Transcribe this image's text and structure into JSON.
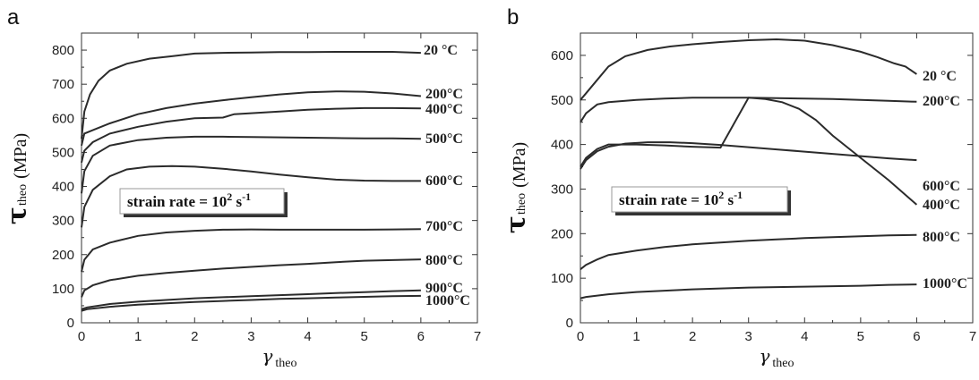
{
  "chart_data": [
    {
      "panel": "a",
      "type": "line",
      "ylabel": "τ",
      "ylabel_sub": "theo",
      "ylabel_unit": "(MPa)",
      "xlabel": "γ",
      "xlabel_sub": "theo",
      "xlim": [
        0,
        7
      ],
      "ylim": [
        0,
        850
      ],
      "xticks": [
        0,
        1,
        2,
        3,
        4,
        5,
        6,
        7
      ],
      "yticks": [
        0,
        100,
        200,
        300,
        400,
        500,
        600,
        700,
        800
      ],
      "annotation": {
        "prefix": "strain rate = 10",
        "exp": "2",
        "suffix": " s",
        "suffix_exp": "-1"
      },
      "series": [
        {
          "name": "20 °C",
          "x": [
            0,
            0.05,
            0.15,
            0.3,
            0.5,
            0.8,
            1.2,
            1.6,
            2,
            2.5,
            3,
            3.5,
            4,
            4.5,
            5,
            5.5,
            6
          ],
          "y": [
            540,
            620,
            670,
            710,
            740,
            760,
            775,
            782,
            790,
            792,
            793,
            794,
            794,
            795,
            795,
            795,
            792
          ]
        },
        {
          "name": "200°C",
          "x": [
            0,
            0.05,
            0.2,
            0.5,
            1,
            1.5,
            2,
            2.5,
            3,
            3.5,
            4,
            4.5,
            5,
            5.5,
            6
          ],
          "y": [
            520,
            555,
            565,
            585,
            612,
            630,
            643,
            653,
            662,
            670,
            676,
            679,
            678,
            673,
            665
          ]
        },
        {
          "name": "400°C",
          "x": [
            0,
            0.05,
            0.2,
            0.5,
            1,
            1.5,
            2,
            2.5,
            2.7,
            3,
            3.5,
            4,
            4.5,
            5,
            5.5,
            6
          ],
          "y": [
            470,
            505,
            530,
            555,
            575,
            590,
            600,
            602,
            612,
            615,
            620,
            625,
            628,
            630,
            630,
            629
          ]
        },
        {
          "name": "500°C",
          "x": [
            0,
            0.05,
            0.2,
            0.5,
            1,
            1.5,
            2,
            2.5,
            3,
            3.5,
            4,
            4.5,
            5,
            5.5,
            6
          ],
          "y": [
            380,
            445,
            490,
            520,
            536,
            543,
            546,
            546,
            545,
            544,
            543,
            542,
            541,
            541,
            540
          ]
        },
        {
          "name": "600°C",
          "x": [
            0,
            0.05,
            0.2,
            0.5,
            0.8,
            1.2,
            1.6,
            2,
            2.5,
            3,
            3.5,
            4,
            4.5,
            5,
            5.5,
            6
          ],
          "y": [
            280,
            340,
            390,
            430,
            450,
            458,
            460,
            458,
            452,
            444,
            435,
            427,
            420,
            417,
            416,
            416
          ]
        },
        {
          "name": "700°C",
          "x": [
            0,
            0.05,
            0.2,
            0.5,
            1,
            1.5,
            2,
            2.5,
            3,
            3.5,
            4,
            4.5,
            5,
            5.5,
            6
          ],
          "y": [
            150,
            185,
            215,
            235,
            255,
            265,
            270,
            273,
            274,
            273,
            273,
            273,
            273,
            274,
            275
          ]
        },
        {
          "name": "800°C",
          "x": [
            0,
            0.05,
            0.2,
            0.5,
            1,
            1.5,
            2,
            2.5,
            3,
            3.5,
            4,
            4.5,
            5,
            5.5,
            6
          ],
          "y": [
            75,
            95,
            110,
            125,
            138,
            146,
            153,
            159,
            164,
            169,
            173,
            178,
            182,
            184,
            186
          ]
        },
        {
          "name": "900°C",
          "x": [
            0,
            0.1,
            0.5,
            1,
            1.5,
            2,
            2.5,
            3,
            3.5,
            4,
            4.5,
            5,
            5.5,
            6
          ],
          "y": [
            40,
            45,
            55,
            62,
            67,
            72,
            75,
            78,
            81,
            84,
            87,
            90,
            93,
            95
          ]
        },
        {
          "name": "1000°C",
          "x": [
            0,
            0.1,
            0.5,
            1,
            1.5,
            2,
            2.5,
            3,
            3.5,
            4,
            4.5,
            5,
            5.5,
            6
          ],
          "y": [
            35,
            40,
            47,
            53,
            57,
            61,
            64,
            67,
            70,
            72,
            74,
            76,
            78,
            79
          ]
        }
      ]
    },
    {
      "panel": "b",
      "type": "line",
      "ylabel": "τ",
      "ylabel_sub": "theo",
      "ylabel_unit": "(MPa)",
      "xlabel": "γ",
      "xlabel_sub": "theo",
      "xlim": [
        0,
        7
      ],
      "ylim": [
        0,
        650
      ],
      "xticks": [
        0,
        1,
        2,
        3,
        4,
        5,
        6,
        7
      ],
      "yticks": [
        0,
        100,
        200,
        300,
        400,
        500,
        600
      ],
      "annotation": {
        "prefix": "strain rate = 10",
        "exp": "2",
        "suffix": " s",
        "suffix_exp": "-1"
      },
      "series": [
        {
          "name": "20 °C",
          "x": [
            0,
            0.1,
            0.3,
            0.5,
            0.8,
            1.2,
            1.6,
            2,
            2.5,
            3,
            3.5,
            4,
            4.5,
            5,
            5.3,
            5.6,
            5.8,
            6
          ],
          "y": [
            500,
            515,
            545,
            575,
            598,
            612,
            620,
            625,
            630,
            634,
            636,
            633,
            623,
            608,
            596,
            582,
            575,
            558
          ]
        },
        {
          "name": "200°C",
          "x": [
            0,
            0.1,
            0.3,
            0.5,
            1,
            1.5,
            2,
            2.5,
            3,
            3.5,
            4,
            4.5,
            5,
            5.5,
            6
          ],
          "y": [
            450,
            470,
            490,
            495,
            500,
            503,
            505,
            505,
            505,
            504,
            503,
            502,
            500,
            498,
            496
          ]
        },
        {
          "name": "400°C",
          "x": [
            0,
            0.1,
            0.3,
            0.5,
            1,
            1.5,
            2,
            2.5,
            3,
            3.3,
            3.6,
            3.9,
            4.2,
            4.5,
            5,
            5.5,
            6
          ],
          "y": [
            350,
            370,
            390,
            400,
            400,
            398,
            395,
            393,
            505,
            502,
            495,
            480,
            455,
            420,
            370,
            320,
            265
          ]
        },
        {
          "name": "600°C",
          "x": [
            0,
            0.1,
            0.3,
            0.5,
            0.8,
            1.2,
            1.6,
            2,
            2.5,
            3,
            3.5,
            4,
            4.5,
            5,
            5.5,
            6
          ],
          "y": [
            345,
            365,
            385,
            395,
            402,
            405,
            405,
            403,
            399,
            394,
            389,
            384,
            379,
            374,
            369,
            365
          ]
        },
        {
          "name": "800°C",
          "x": [
            0,
            0.1,
            0.3,
            0.5,
            1,
            1.5,
            2,
            2.5,
            3,
            3.5,
            4,
            4.5,
            5,
            5.5,
            6
          ],
          "y": [
            120,
            130,
            142,
            152,
            162,
            170,
            176,
            180,
            184,
            187,
            190,
            192,
            194,
            196,
            197
          ]
        },
        {
          "name": "1000°C",
          "x": [
            0,
            0.1,
            0.5,
            1,
            1.5,
            2,
            2.5,
            3,
            3.5,
            4,
            4.5,
            5,
            5.5,
            6
          ],
          "y": [
            55,
            58,
            64,
            69,
            72,
            75,
            77,
            79,
            80,
            81,
            82,
            83,
            85,
            86
          ]
        }
      ]
    }
  ]
}
